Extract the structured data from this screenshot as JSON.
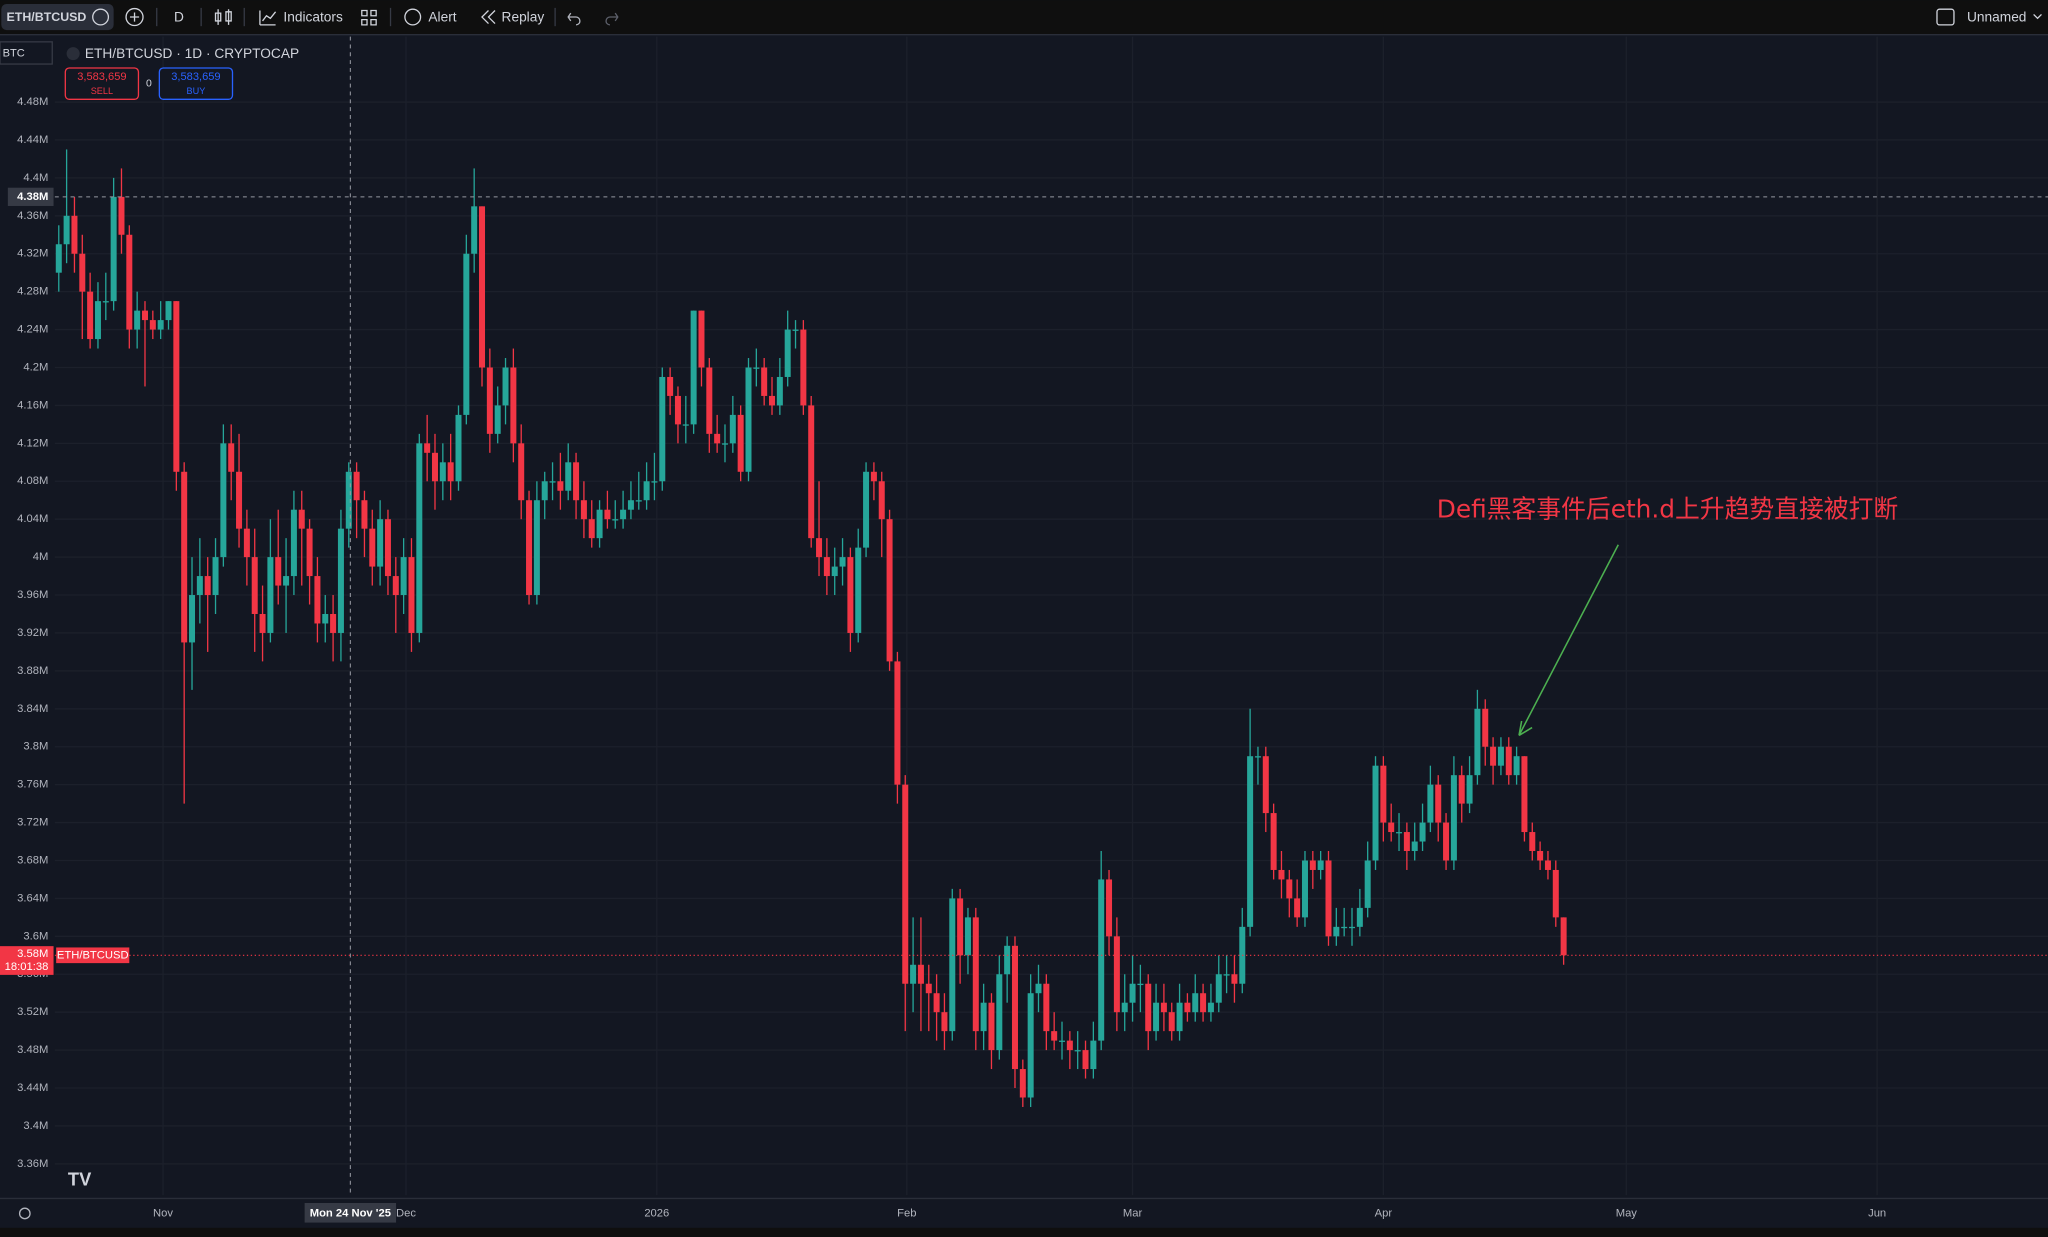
{
  "toolbar": {
    "symbol": "ETH/BTCUSD",
    "interval": "D",
    "indicators": "Indicators",
    "alert": "Alert",
    "replay": "Replay",
    "layout": "Unnamed"
  },
  "legend": {
    "title": "ETH/BTCUSD · 1D · CRYPTOCAP",
    "sell_price": "3,583,659",
    "sell": "SELL",
    "spread": "0",
    "buy_price": "3,583,659",
    "buy": "BUY"
  },
  "currency": "BTC",
  "chart_data": {
    "type": "candlestick",
    "up_color": "#26a69a",
    "down_color": "#f23645",
    "grid": true,
    "annotation": "Defi黑客事件后eth.d上升趋势直接被打断",
    "ylim": [
      3.327,
      4.549
    ],
    "yticks": [
      {
        "value": 4.48,
        "label": "4.48M"
      },
      {
        "value": 4.44,
        "label": "4.44M"
      },
      {
        "value": 4.4,
        "label": "4.4M"
      },
      {
        "value": 4.36,
        "label": "4.36M"
      },
      {
        "value": 4.32,
        "label": "4.32M"
      },
      {
        "value": 4.28,
        "label": "4.28M"
      },
      {
        "value": 4.24,
        "label": "4.24M"
      },
      {
        "value": 4.2,
        "label": "4.2M"
      },
      {
        "value": 4.16,
        "label": "4.16M"
      },
      {
        "value": 4.12,
        "label": "4.12M"
      },
      {
        "value": 4.08,
        "label": "4.08M"
      },
      {
        "value": 4.04,
        "label": "4.04M"
      },
      {
        "value": 4,
        "label": "4M"
      },
      {
        "value": 3.96,
        "label": "3.96M"
      },
      {
        "value": 3.92,
        "label": "3.92M"
      },
      {
        "value": 3.88,
        "label": "3.88M"
      },
      {
        "value": 3.84,
        "label": "3.84M"
      },
      {
        "value": 3.8,
        "label": "3.8M"
      },
      {
        "value": 3.76,
        "label": "3.76M"
      },
      {
        "value": 3.72,
        "label": "3.72M"
      },
      {
        "value": 3.68,
        "label": "3.68M"
      },
      {
        "value": 3.64,
        "label": "3.64M"
      },
      {
        "value": 3.6,
        "label": "3.6M"
      },
      {
        "value": 3.56,
        "label": "3.56M"
      },
      {
        "value": 3.52,
        "label": "3.52M"
      },
      {
        "value": 3.48,
        "label": "3.48M"
      },
      {
        "value": 3.44,
        "label": "3.44M"
      },
      {
        "value": 3.4,
        "label": "3.4M"
      },
      {
        "value": 3.36,
        "label": "3.36M"
      }
    ],
    "xlim": [
      -0.5,
      253.8
    ],
    "xticks": [
      {
        "value": 13.3,
        "label": "Nov"
      },
      {
        "value": 44.3,
        "label": "Dec"
      },
      {
        "value": 76.3,
        "label": "2026"
      },
      {
        "value": 108.2,
        "label": "Feb"
      },
      {
        "value": 137,
        "label": "Mar"
      },
      {
        "value": 169,
        "label": "Apr"
      },
      {
        "value": 200,
        "label": "May"
      },
      {
        "value": 232,
        "label": "Jun"
      }
    ],
    "crosshair": {
      "x": {
        "value": 37.2,
        "label": "Mon 24 Nov '25"
      },
      "y": {
        "value": 4.38,
        "label": "4.38M"
      }
    },
    "last_price": {
      "value": 3.58,
      "label": "3.58M"
    },
    "countdown": "18:01:38",
    "price_tag": "ETH/BTCUSD",
    "ohlc": [
      [
        4.3,
        4.35,
        4.28,
        4.33
      ],
      [
        4.33,
        4.43,
        4.31,
        4.36
      ],
      [
        4.36,
        4.38,
        4.3,
        4.32
      ],
      [
        4.32,
        4.34,
        4.23,
        4.28
      ],
      [
        4.28,
        4.3,
        4.22,
        4.23
      ],
      [
        4.23,
        4.29,
        4.22,
        4.27
      ],
      [
        4.27,
        4.3,
        4.25,
        4.27
      ],
      [
        4.27,
        4.4,
        4.26,
        4.38
      ],
      [
        4.38,
        4.41,
        4.32,
        4.34
      ],
      [
        4.34,
        4.35,
        4.22,
        4.24
      ],
      [
        4.24,
        4.28,
        4.22,
        4.26
      ],
      [
        4.26,
        4.27,
        4.18,
        4.25
      ],
      [
        4.25,
        4.26,
        4.23,
        4.24
      ],
      [
        4.24,
        4.27,
        4.23,
        4.25
      ],
      [
        4.25,
        4.27,
        4.24,
        4.27
      ],
      [
        4.27,
        4.27,
        4.07,
        4.09
      ],
      [
        4.09,
        4.1,
        3.74,
        3.91
      ],
      [
        3.91,
        4.0,
        3.86,
        3.96
      ],
      [
        3.96,
        4.02,
        3.93,
        3.98
      ],
      [
        3.98,
        4.0,
        3.9,
        3.96
      ],
      [
        3.96,
        4.02,
        3.94,
        4.0
      ],
      [
        4.0,
        4.14,
        3.99,
        4.12
      ],
      [
        4.12,
        4.14,
        4.06,
        4.09
      ],
      [
        4.09,
        4.13,
        4.01,
        4.03
      ],
      [
        4.03,
        4.05,
        3.97,
        4.0
      ],
      [
        4.0,
        4.03,
        3.9,
        3.94
      ],
      [
        3.94,
        3.97,
        3.89,
        3.92
      ],
      [
        3.92,
        4.04,
        3.91,
        4.0
      ],
      [
        4.0,
        4.05,
        3.95,
        3.97
      ],
      [
        3.97,
        4.02,
        3.92,
        3.98
      ],
      [
        3.98,
        4.07,
        3.96,
        4.05
      ],
      [
        4.05,
        4.07,
        3.97,
        4.03
      ],
      [
        4.03,
        4.04,
        3.95,
        3.98
      ],
      [
        3.98,
        4.0,
        3.91,
        3.93
      ],
      [
        3.93,
        3.96,
        3.91,
        3.94
      ],
      [
        3.94,
        3.96,
        3.89,
        3.92
      ],
      [
        3.92,
        4.05,
        3.89,
        4.03
      ],
      [
        4.03,
        4.1,
        4.01,
        4.09
      ],
      [
        4.09,
        4.1,
        4.02,
        4.06
      ],
      [
        4.06,
        4.07,
        4.0,
        4.03
      ],
      [
        4.03,
        4.05,
        3.97,
        3.99
      ],
      [
        3.99,
        4.06,
        3.97,
        4.04
      ],
      [
        4.04,
        4.05,
        3.96,
        3.98
      ],
      [
        3.98,
        4.0,
        3.92,
        3.96
      ],
      [
        3.96,
        4.02,
        3.94,
        4.0
      ],
      [
        4.0,
        4.02,
        3.9,
        3.92
      ],
      [
        3.92,
        4.13,
        3.91,
        4.12
      ],
      [
        4.12,
        4.15,
        4.08,
        4.11
      ],
      [
        4.11,
        4.13,
        4.05,
        4.08
      ],
      [
        4.08,
        4.12,
        4.06,
        4.1
      ],
      [
        4.1,
        4.13,
        4.06,
        4.08
      ],
      [
        4.08,
        4.16,
        4.07,
        4.15
      ],
      [
        4.15,
        4.34,
        4.14,
        4.32
      ],
      [
        4.32,
        4.41,
        4.3,
        4.37
      ],
      [
        4.37,
        4.37,
        4.18,
        4.2
      ],
      [
        4.2,
        4.22,
        4.11,
        4.13
      ],
      [
        4.13,
        4.18,
        4.12,
        4.16
      ],
      [
        4.16,
        4.21,
        4.14,
        4.2
      ],
      [
        4.2,
        4.22,
        4.1,
        4.12
      ],
      [
        4.12,
        4.14,
        4.04,
        4.06
      ],
      [
        4.06,
        4.07,
        3.95,
        3.96
      ],
      [
        3.96,
        4.08,
        3.95,
        4.06
      ],
      [
        4.06,
        4.09,
        4.04,
        4.08
      ],
      [
        4.08,
        4.1,
        4.06,
        4.08
      ],
      [
        4.08,
        4.11,
        4.05,
        4.07
      ],
      [
        4.07,
        4.12,
        4.06,
        4.1
      ],
      [
        4.1,
        4.11,
        4.04,
        4.06
      ],
      [
        4.06,
        4.08,
        4.02,
        4.04
      ],
      [
        4.04,
        4.06,
        4.01,
        4.02
      ],
      [
        4.02,
        4.06,
        4.01,
        4.05
      ],
      [
        4.05,
        4.07,
        4.03,
        4.04
      ],
      [
        4.04,
        4.06,
        4.03,
        4.04
      ],
      [
        4.04,
        4.07,
        4.03,
        4.05
      ],
      [
        4.05,
        4.08,
        4.04,
        4.06
      ],
      [
        4.06,
        4.09,
        4.05,
        4.06
      ],
      [
        4.06,
        4.1,
        4.05,
        4.08
      ],
      [
        4.08,
        4.11,
        4.06,
        4.08
      ],
      [
        4.08,
        4.2,
        4.07,
        4.19
      ],
      [
        4.19,
        4.2,
        4.15,
        4.17
      ],
      [
        4.17,
        4.18,
        4.12,
        4.14
      ],
      [
        4.14,
        4.17,
        4.12,
        4.14
      ],
      [
        4.14,
        4.26,
        4.13,
        4.26
      ],
      [
        4.26,
        4.26,
        4.18,
        4.2
      ],
      [
        4.2,
        4.21,
        4.11,
        4.13
      ],
      [
        4.13,
        4.15,
        4.11,
        4.12
      ],
      [
        4.12,
        4.14,
        4.1,
        4.12
      ],
      [
        4.12,
        4.17,
        4.11,
        4.15
      ],
      [
        4.15,
        4.16,
        4.08,
        4.09
      ],
      [
        4.09,
        4.21,
        4.08,
        4.2
      ],
      [
        4.2,
        4.22,
        4.18,
        4.2
      ],
      [
        4.2,
        4.21,
        4.16,
        4.17
      ],
      [
        4.17,
        4.19,
        4.15,
        4.16
      ],
      [
        4.16,
        4.21,
        4.15,
        4.19
      ],
      [
        4.19,
        4.26,
        4.18,
        4.24
      ],
      [
        4.24,
        4.25,
        4.22,
        4.24
      ],
      [
        4.24,
        4.25,
        4.15,
        4.16
      ],
      [
        4.16,
        4.17,
        4.01,
        4.02
      ],
      [
        4.02,
        4.08,
        3.98,
        4.0
      ],
      [
        4.0,
        4.02,
        3.96,
        3.98
      ],
      [
        3.98,
        4.01,
        3.96,
        3.99
      ],
      [
        3.99,
        4.02,
        3.97,
        4.0
      ],
      [
        4.0,
        4.01,
        3.9,
        3.92
      ],
      [
        3.92,
        4.03,
        3.91,
        4.01
      ],
      [
        4.01,
        4.1,
        4.0,
        4.09
      ],
      [
        4.09,
        4.1,
        4.06,
        4.08
      ],
      [
        4.08,
        4.09,
        4.0,
        4.04
      ],
      [
        4.04,
        4.05,
        3.88,
        3.89
      ],
      [
        3.89,
        3.9,
        3.74,
        3.76
      ],
      [
        3.76,
        3.77,
        3.5,
        3.55
      ],
      [
        3.55,
        3.62,
        3.52,
        3.57
      ],
      [
        3.57,
        3.62,
        3.5,
        3.55
      ],
      [
        3.55,
        3.57,
        3.5,
        3.54
      ],
      [
        3.54,
        3.56,
        3.49,
        3.52
      ],
      [
        3.52,
        3.54,
        3.48,
        3.5
      ],
      [
        3.5,
        3.65,
        3.49,
        3.64
      ],
      [
        3.64,
        3.65,
        3.55,
        3.58
      ],
      [
        3.58,
        3.63,
        3.56,
        3.62
      ],
      [
        3.62,
        3.63,
        3.48,
        3.5
      ],
      [
        3.5,
        3.55,
        3.48,
        3.53
      ],
      [
        3.53,
        3.54,
        3.46,
        3.48
      ],
      [
        3.48,
        3.58,
        3.47,
        3.56
      ],
      [
        3.56,
        3.6,
        3.53,
        3.59
      ],
      [
        3.59,
        3.6,
        3.44,
        3.46
      ],
      [
        3.46,
        3.47,
        3.42,
        3.43
      ],
      [
        3.43,
        3.56,
        3.42,
        3.54
      ],
      [
        3.54,
        3.57,
        3.52,
        3.55
      ],
      [
        3.55,
        3.56,
        3.48,
        3.5
      ],
      [
        3.5,
        3.52,
        3.48,
        3.49
      ],
      [
        3.49,
        3.51,
        3.47,
        3.49
      ],
      [
        3.49,
        3.5,
        3.46,
        3.48
      ],
      [
        3.48,
        3.5,
        3.46,
        3.48
      ],
      [
        3.48,
        3.49,
        3.45,
        3.46
      ],
      [
        3.46,
        3.51,
        3.45,
        3.49
      ],
      [
        3.49,
        3.69,
        3.48,
        3.66
      ],
      [
        3.66,
        3.67,
        3.58,
        3.6
      ],
      [
        3.6,
        3.62,
        3.5,
        3.52
      ],
      [
        3.52,
        3.56,
        3.5,
        3.53
      ],
      [
        3.53,
        3.58,
        3.51,
        3.55
      ],
      [
        3.55,
        3.57,
        3.52,
        3.55
      ],
      [
        3.55,
        3.56,
        3.48,
        3.5
      ],
      [
        3.5,
        3.55,
        3.49,
        3.53
      ],
      [
        3.53,
        3.55,
        3.5,
        3.52
      ],
      [
        3.52,
        3.53,
        3.49,
        3.5
      ],
      [
        3.5,
        3.55,
        3.49,
        3.53
      ],
      [
        3.53,
        3.54,
        3.51,
        3.52
      ],
      [
        3.52,
        3.56,
        3.51,
        3.54
      ],
      [
        3.54,
        3.55,
        3.51,
        3.52
      ],
      [
        3.52,
        3.55,
        3.51,
        3.53
      ],
      [
        3.53,
        3.58,
        3.52,
        3.56
      ],
      [
        3.56,
        3.58,
        3.54,
        3.56
      ],
      [
        3.56,
        3.58,
        3.53,
        3.55
      ],
      [
        3.55,
        3.63,
        3.54,
        3.61
      ],
      [
        3.61,
        3.84,
        3.6,
        3.79
      ],
      [
        3.79,
        3.8,
        3.76,
        3.79
      ],
      [
        3.79,
        3.8,
        3.71,
        3.73
      ],
      [
        3.73,
        3.74,
        3.66,
        3.67
      ],
      [
        3.67,
        3.69,
        3.64,
        3.66
      ],
      [
        3.66,
        3.67,
        3.62,
        3.64
      ],
      [
        3.64,
        3.66,
        3.61,
        3.62
      ],
      [
        3.62,
        3.69,
        3.61,
        3.68
      ],
      [
        3.68,
        3.69,
        3.65,
        3.67
      ],
      [
        3.67,
        3.69,
        3.66,
        3.68
      ],
      [
        3.68,
        3.69,
        3.59,
        3.6
      ],
      [
        3.6,
        3.63,
        3.59,
        3.61
      ],
      [
        3.61,
        3.63,
        3.6,
        3.61
      ],
      [
        3.61,
        3.63,
        3.59,
        3.61
      ],
      [
        3.61,
        3.65,
        3.6,
        3.63
      ],
      [
        3.63,
        3.7,
        3.62,
        3.68
      ],
      [
        3.68,
        3.79,
        3.67,
        3.78
      ],
      [
        3.78,
        3.79,
        3.7,
        3.72
      ],
      [
        3.72,
        3.74,
        3.7,
        3.71
      ],
      [
        3.71,
        3.73,
        3.69,
        3.71
      ],
      [
        3.71,
        3.72,
        3.67,
        3.69
      ],
      [
        3.69,
        3.72,
        3.68,
        3.7
      ],
      [
        3.7,
        3.74,
        3.69,
        3.72
      ],
      [
        3.72,
        3.78,
        3.71,
        3.76
      ],
      [
        3.76,
        3.77,
        3.7,
        3.72
      ],
      [
        3.72,
        3.73,
        3.67,
        3.68
      ],
      [
        3.68,
        3.79,
        3.67,
        3.77
      ],
      [
        3.77,
        3.78,
        3.72,
        3.74
      ],
      [
        3.74,
        3.79,
        3.73,
        3.77
      ],
      [
        3.77,
        3.86,
        3.76,
        3.84
      ],
      [
        3.84,
        3.85,
        3.78,
        3.8
      ],
      [
        3.8,
        3.81,
        3.76,
        3.78
      ],
      [
        3.78,
        3.81,
        3.77,
        3.8
      ],
      [
        3.8,
        3.81,
        3.76,
        3.77
      ],
      [
        3.77,
        3.8,
        3.76,
        3.79
      ],
      [
        3.79,
        3.79,
        3.7,
        3.71
      ],
      [
        3.71,
        3.72,
        3.68,
        3.69
      ],
      [
        3.69,
        3.7,
        3.67,
        3.68
      ],
      [
        3.68,
        3.69,
        3.66,
        3.67
      ],
      [
        3.67,
        3.68,
        3.61,
        3.62
      ],
      [
        3.62,
        3.62,
        3.57,
        3.58
      ]
    ]
  }
}
